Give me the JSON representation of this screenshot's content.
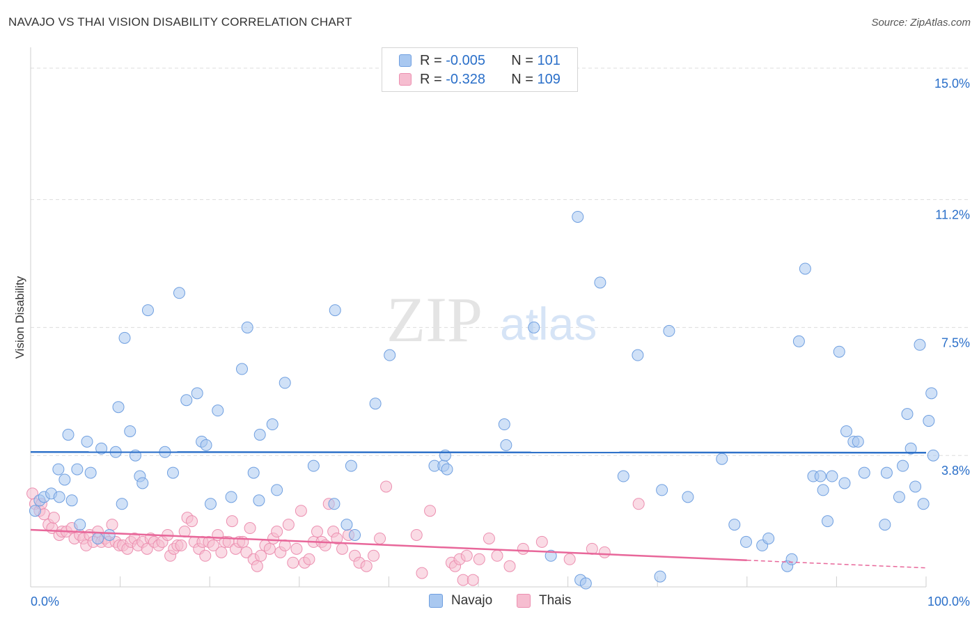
{
  "header": {
    "title": "NAVAJO VS THAI VISION DISABILITY CORRELATION CHART",
    "source": "Source: ZipAtlas.com"
  },
  "watermark": {
    "zip": "ZIP",
    "atlas": "atlas"
  },
  "legend": {
    "rows": [
      {
        "r_label": "R =",
        "r_value": "-0.005",
        "n_label": "N =",
        "n_value": "101"
      },
      {
        "r_label": "R =",
        "r_value": "-0.328",
        "n_label": "N =",
        "n_value": "109"
      }
    ]
  },
  "bottom_legend": {
    "navajo": "Navajo",
    "thais": "Thais"
  },
  "colors": {
    "navajo_fill": "#a9c8f0",
    "navajo_stroke": "#6f9fe0",
    "navajo_line": "#2f72c9",
    "thai_fill": "#f6bdd0",
    "thai_stroke": "#ec8fb0",
    "thai_line": "#e8679a",
    "axis_label": "#2a6fc9",
    "grid": "#dddddd"
  },
  "chart_data": {
    "type": "scatter",
    "title": "NAVAJO VS THAI VISION DISABILITY CORRELATION CHART",
    "xlabel": "",
    "ylabel": "Vision Disability",
    "xlim": [
      0,
      100
    ],
    "ylim": [
      0,
      15.4
    ],
    "x_tick_labels": [
      "0.0%",
      "100.0%"
    ],
    "y_ticks": [
      3.8,
      7.5,
      11.2,
      15.0
    ],
    "y_tick_labels": [
      "3.8%",
      "7.5%",
      "11.2%",
      "15.0%"
    ],
    "grid": true,
    "legend_position": "top-center",
    "series": [
      {
        "name": "Navajo",
        "R": -0.005,
        "N": 101,
        "trend": {
          "x": [
            0,
            100
          ],
          "y": [
            3.9,
            3.88
          ],
          "dashed_from": null
        },
        "points": [
          [
            0.5,
            2.2
          ],
          [
            1.0,
            2.5
          ],
          [
            1.5,
            2.6
          ],
          [
            2.3,
            2.7
          ],
          [
            3.1,
            3.4
          ],
          [
            3.2,
            2.6
          ],
          [
            3.8,
            3.1
          ],
          [
            4.2,
            4.4
          ],
          [
            4.6,
            2.5
          ],
          [
            5.5,
            1.8
          ],
          [
            5.2,
            3.4
          ],
          [
            6.3,
            4.2
          ],
          [
            6.7,
            3.3
          ],
          [
            7.5,
            1.4
          ],
          [
            7.9,
            4.0
          ],
          [
            8.8,
            1.5
          ],
          [
            9.5,
            3.9
          ],
          [
            9.8,
            5.2
          ],
          [
            10.2,
            2.4
          ],
          [
            10.5,
            7.2
          ],
          [
            11.1,
            4.5
          ],
          [
            11.7,
            3.8
          ],
          [
            12.2,
            3.2
          ],
          [
            12.5,
            3.0
          ],
          [
            13.1,
            8.0
          ],
          [
            15.0,
            3.9
          ],
          [
            15.9,
            3.3
          ],
          [
            16.6,
            8.5
          ],
          [
            17.4,
            5.4
          ],
          [
            18.6,
            5.6
          ],
          [
            19.1,
            4.2
          ],
          [
            19.6,
            4.1
          ],
          [
            20.1,
            2.4
          ],
          [
            20.9,
            5.1
          ],
          [
            22.4,
            2.6
          ],
          [
            23.6,
            6.3
          ],
          [
            24.2,
            7.5
          ],
          [
            24.9,
            3.3
          ],
          [
            25.5,
            2.5
          ],
          [
            25.6,
            4.4
          ],
          [
            27.0,
            4.7
          ],
          [
            27.5,
            2.8
          ],
          [
            28.4,
            5.9
          ],
          [
            31.6,
            3.5
          ],
          [
            33.9,
            2.4
          ],
          [
            34.0,
            8.0
          ],
          [
            35.3,
            1.8
          ],
          [
            35.8,
            3.5
          ],
          [
            36.2,
            1.5
          ],
          [
            38.5,
            5.3
          ],
          [
            40.1,
            6.7
          ],
          [
            45.1,
            3.5
          ],
          [
            46.1,
            3.5
          ],
          [
            46.3,
            3.8
          ],
          [
            46.5,
            3.4
          ],
          [
            52.9,
            4.7
          ],
          [
            53.1,
            4.1
          ],
          [
            56.2,
            7.5
          ],
          [
            58.1,
            0.9
          ],
          [
            61.1,
            10.7
          ],
          [
            61.4,
            0.2
          ],
          [
            62.0,
            0.1
          ],
          [
            63.6,
            8.8
          ],
          [
            66.2,
            3.2
          ],
          [
            67.8,
            6.7
          ],
          [
            70.3,
            0.3
          ],
          [
            70.5,
            2.8
          ],
          [
            71.3,
            7.4
          ],
          [
            73.4,
            2.6
          ],
          [
            77.2,
            3.7
          ],
          [
            78.6,
            1.8
          ],
          [
            79.9,
            1.3
          ],
          [
            81.7,
            1.2
          ],
          [
            82.4,
            1.4
          ],
          [
            84.5,
            0.6
          ],
          [
            85.0,
            0.8
          ],
          [
            85.8,
            7.1
          ],
          [
            86.5,
            9.2
          ],
          [
            87.4,
            3.2
          ],
          [
            88.2,
            3.2
          ],
          [
            88.5,
            2.8
          ],
          [
            89.0,
            1.9
          ],
          [
            89.5,
            3.2
          ],
          [
            90.3,
            6.8
          ],
          [
            90.9,
            3.0
          ],
          [
            91.1,
            4.5
          ],
          [
            91.9,
            4.2
          ],
          [
            92.4,
            4.2
          ],
          [
            93.1,
            3.3
          ],
          [
            95.4,
            1.8
          ],
          [
            95.6,
            3.3
          ],
          [
            97.0,
            2.6
          ],
          [
            97.4,
            3.5
          ],
          [
            97.9,
            5.0
          ],
          [
            98.3,
            4.0
          ],
          [
            98.8,
            2.9
          ],
          [
            99.3,
            7.0
          ],
          [
            99.7,
            2.4
          ],
          [
            100.3,
            4.8
          ],
          [
            100.6,
            5.6
          ],
          [
            100.8,
            3.8
          ]
        ]
      },
      {
        "name": "Thais",
        "R": -0.328,
        "N": 109,
        "trend": {
          "x": [
            0,
            100
          ],
          "y": [
            1.65,
            0.55
          ],
          "dashed_from": 80
        },
        "points": [
          [
            0.2,
            2.7
          ],
          [
            0.5,
            2.4
          ],
          [
            1.0,
            2.2
          ],
          [
            1.2,
            2.4
          ],
          [
            1.5,
            2.1
          ],
          [
            2.0,
            1.8
          ],
          [
            2.4,
            1.7
          ],
          [
            2.6,
            2.0
          ],
          [
            3.2,
            1.5
          ],
          [
            3.5,
            1.6
          ],
          [
            4.0,
            1.6
          ],
          [
            4.6,
            1.7
          ],
          [
            4.9,
            1.4
          ],
          [
            5.5,
            1.5
          ],
          [
            5.9,
            1.4
          ],
          [
            6.2,
            1.2
          ],
          [
            6.6,
            1.5
          ],
          [
            7.0,
            1.3
          ],
          [
            7.5,
            1.6
          ],
          [
            7.9,
            1.3
          ],
          [
            8.3,
            1.4
          ],
          [
            8.7,
            1.3
          ],
          [
            9.1,
            1.8
          ],
          [
            9.5,
            1.3
          ],
          [
            9.9,
            1.2
          ],
          [
            10.3,
            1.2
          ],
          [
            10.8,
            1.1
          ],
          [
            11.2,
            1.3
          ],
          [
            11.6,
            1.4
          ],
          [
            12.0,
            1.2
          ],
          [
            12.5,
            1.3
          ],
          [
            13.0,
            1.1
          ],
          [
            13.4,
            1.4
          ],
          [
            13.8,
            1.3
          ],
          [
            14.3,
            1.2
          ],
          [
            14.7,
            1.3
          ],
          [
            15.3,
            1.5
          ],
          [
            15.6,
            0.9
          ],
          [
            16.0,
            1.1
          ],
          [
            16.4,
            1.2
          ],
          [
            16.8,
            1.2
          ],
          [
            17.2,
            1.6
          ],
          [
            17.5,
            2.0
          ],
          [
            18.0,
            1.9
          ],
          [
            18.3,
            1.3
          ],
          [
            18.8,
            1.1
          ],
          [
            19.2,
            1.3
          ],
          [
            19.5,
            0.9
          ],
          [
            19.9,
            1.3
          ],
          [
            20.4,
            1.2
          ],
          [
            20.9,
            1.5
          ],
          [
            21.3,
            1.0
          ],
          [
            21.7,
            1.3
          ],
          [
            22.1,
            1.3
          ],
          [
            22.5,
            1.9
          ],
          [
            22.9,
            1.1
          ],
          [
            23.3,
            1.3
          ],
          [
            23.7,
            1.3
          ],
          [
            24.1,
            1.0
          ],
          [
            24.5,
            1.7
          ],
          [
            24.9,
            0.8
          ],
          [
            25.3,
            0.6
          ],
          [
            25.7,
            0.9
          ],
          [
            26.2,
            1.2
          ],
          [
            26.7,
            1.1
          ],
          [
            27.1,
            1.4
          ],
          [
            27.5,
            1.6
          ],
          [
            27.9,
            1.0
          ],
          [
            28.4,
            1.2
          ],
          [
            28.8,
            1.8
          ],
          [
            29.3,
            0.7
          ],
          [
            29.7,
            1.1
          ],
          [
            30.2,
            2.2
          ],
          [
            30.6,
            0.7
          ],
          [
            31.1,
            0.8
          ],
          [
            31.6,
            1.3
          ],
          [
            32.0,
            1.6
          ],
          [
            32.5,
            1.3
          ],
          [
            32.9,
            1.2
          ],
          [
            33.3,
            2.4
          ],
          [
            33.8,
            1.6
          ],
          [
            34.2,
            1.4
          ],
          [
            34.8,
            1.1
          ],
          [
            35.5,
            1.5
          ],
          [
            36.2,
            0.9
          ],
          [
            36.7,
            0.7
          ],
          [
            37.5,
            0.6
          ],
          [
            38.3,
            0.9
          ],
          [
            39.0,
            1.4
          ],
          [
            39.7,
            2.9
          ],
          [
            43.1,
            1.5
          ],
          [
            43.7,
            0.4
          ],
          [
            44.6,
            2.2
          ],
          [
            47.0,
            0.7
          ],
          [
            47.4,
            0.6
          ],
          [
            47.9,
            0.8
          ],
          [
            48.3,
            0.2
          ],
          [
            48.7,
            0.9
          ],
          [
            49.4,
            0.2
          ],
          [
            50.1,
            0.8
          ],
          [
            51.2,
            1.4
          ],
          [
            52.1,
            0.9
          ],
          [
            53.5,
            0.6
          ],
          [
            55.0,
            1.1
          ],
          [
            57.1,
            1.3
          ],
          [
            60.2,
            0.8
          ],
          [
            62.7,
            1.1
          ],
          [
            64.1,
            1.0
          ],
          [
            67.9,
            2.4
          ]
        ]
      }
    ]
  }
}
